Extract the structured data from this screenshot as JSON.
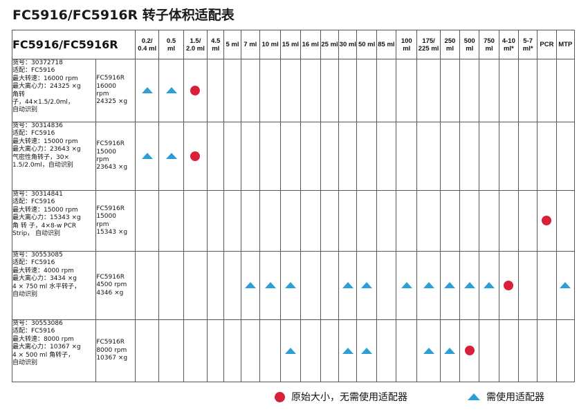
{
  "title": "FC5916/FC5916R 转子体积适配表",
  "table": {
    "header_label": "FC5916/FC5916R",
    "volumes": [
      [
        "0.2/",
        "0.4 ml"
      ],
      [
        "0.5",
        "ml"
      ],
      [
        "1.5/",
        "2.0 ml"
      ],
      [
        "4.5",
        "ml"
      ],
      [
        "5 ml"
      ],
      [
        "7 ml"
      ],
      [
        "10 ml"
      ],
      [
        "15 ml"
      ],
      [
        "16 ml"
      ],
      [
        "25 ml"
      ],
      [
        "30 ml"
      ],
      [
        "50 ml"
      ],
      [
        "85 ml"
      ],
      [
        "100",
        "ml"
      ],
      [
        "175/",
        "225 ml"
      ],
      [
        "250",
        "ml"
      ],
      [
        "500",
        "ml"
      ],
      [
        "750",
        "ml"
      ],
      [
        "4-10",
        "ml*"
      ],
      [
        "5-7",
        "ml*"
      ],
      [
        "PCR"
      ],
      [
        "MTP"
      ]
    ],
    "rows": [
      {
        "info": [
          "货号：30372718",
          "适配：FC5916",
          "最大转速：16000 rpm",
          "最大离心力：24325 ×g",
          "角转",
          "子，44×1.5/2.0ml，",
          "自动识别"
        ],
        "model": [
          "FC5916R",
          "16000",
          "rpm",
          "24325 ×g"
        ],
        "marks": [
          "tri",
          "tri",
          "dot",
          "",
          "",
          "",
          "",
          "",
          "",
          "",
          "",
          "",
          "",
          "",
          "",
          "",
          "",
          "",
          "",
          "",
          "",
          ""
        ]
      },
      {
        "info": [
          "货号：30314836",
          "适配：FC5916",
          "最大转速：15000 rpm",
          "最大离心力：23643 ×g",
          "气密性角转子，30×",
          "1.5/2.0ml，自动识别"
        ],
        "model": [
          "FC5916R",
          "15000",
          "rpm",
          "23643 ×g"
        ],
        "marks": [
          "tri",
          "tri",
          "dot",
          "",
          "",
          "",
          "",
          "",
          "",
          "",
          "",
          "",
          "",
          "",
          "",
          "",
          "",
          "",
          "",
          "",
          "",
          ""
        ]
      },
      {
        "info": [
          "货号：30314841",
          "适配：FC5916",
          "最大转速：15000 rpm",
          "最大离心力：15343 ×g",
          "角 转 子，4×8-w PCR",
          "Strip， 自动识别"
        ],
        "model": [
          "FC5916R",
          "15000",
          "rpm",
          "15343 ×g"
        ],
        "marks": [
          "",
          "",
          "",
          "",
          "",
          "",
          "",
          "",
          "",
          "",
          "",
          "",
          "",
          "",
          "",
          "",
          "",
          "",
          "",
          "",
          "dot",
          ""
        ]
      },
      {
        "info": [
          "货号：30553085",
          "适配：FC5916",
          "最大转速：4000 rpm",
          "最大离心力：3434 ×g",
          "4 × 750 ml 水平转子，",
          "自动识别"
        ],
        "model": [
          "FC5916R",
          "4500 rpm",
          "4346 ×g"
        ],
        "marks": [
          "",
          "",
          "",
          "",
          "",
          "tri",
          "tri",
          "tri",
          "",
          "",
          "tri",
          "tri",
          "",
          "tri",
          "tri",
          "tri",
          "tri",
          "tri",
          "dot",
          "",
          "",
          "tri"
        ]
      },
      {
        "info": [
          "货号：30553086",
          "适配：FC5916",
          "最大转速：8000 rpm",
          "最大离心力：10367 ×g",
          "4 × 500 ml 角转子，",
          "自动识别"
        ],
        "model": [
          "FC5916R",
          "8000 rpm",
          "10367 ×g"
        ],
        "marks": [
          "",
          "",
          "",
          "",
          "",
          "",
          "",
          "tri",
          "",
          "",
          "tri",
          "tri",
          "",
          "",
          "tri",
          "tri",
          "dot",
          "",
          "",
          "",
          "",
          ""
        ]
      }
    ]
  },
  "legend": {
    "circle_label": "原始大小，无需使用适配器",
    "triangle_label": "需使用适配器"
  },
  "colors": {
    "circle": "#d9203a",
    "triangle": "#2e9ed6",
    "border": "#555555"
  },
  "icons": {
    "circle": "red-circle-icon",
    "triangle": "blue-triangle-icon"
  }
}
